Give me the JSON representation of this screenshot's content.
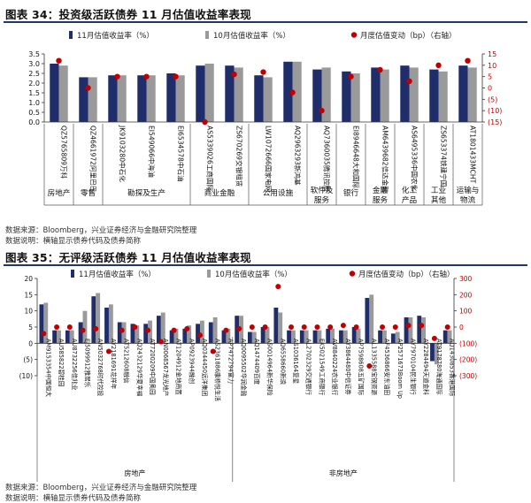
{
  "figures": [
    {
      "title": "图表 34：投资级活跃债券 11 月估值收益率表现",
      "source": "数据来源：Bloomberg，兴业证券经济与金融研究院整理",
      "note": "数据说明：横轴显示债券代码及债券简称",
      "legend": [
        {
          "label": "11月估值收益率（%）",
          "kind": "bar",
          "color": "#1f2d6b"
        },
        {
          "label": "10月估值收益率（%）",
          "kind": "bar",
          "color": "#9a9a9a"
        },
        {
          "label": "月度估值变动（bp）（右轴）",
          "kind": "dot",
          "color": "#c00000"
        }
      ]
    },
    {
      "title": "图表 35：无评级活跃债券 11 月估值收益率表现",
      "source": "数据来源：Bloomberg，兴业证券经济与金融研究院整理",
      "note": "数据说明：横轴显示债券代码及债券简称",
      "legend": [
        {
          "label": "11月估值收益率（%）",
          "kind": "bar",
          "color": "#1f2d6b"
        },
        {
          "label": "10月估值收益率（%）",
          "kind": "bar",
          "color": "#9a9a9a"
        },
        {
          "label": "月度估值变动（bp）（右轴）",
          "kind": "dot",
          "color": "#c00000"
        }
      ]
    }
  ],
  "chart_data": [
    {
      "type": "bar",
      "categories": [
        "QZ5765809万科",
        "QZ4661972阿里巴巴",
        "JK9103280中石化",
        "EI549066中海油",
        "EI6534578中石油",
        "AS5339026工商国际",
        "ZS670269交银租赁",
        "LW1072666国家电网",
        "AQ2963293新鸿基",
        "AQ7360035腾讯控股",
        "EI8946648大和国际",
        "AM6439682信达金融",
        "AS6495336中国农化",
        "ZS653374铁建宁国",
        "AT1801433MCHT"
      ],
      "series": [
        {
          "name": "11月估值收益率（%）",
          "axis": "left",
          "values": [
            3.0,
            2.3,
            2.4,
            2.4,
            2.5,
            2.9,
            2.9,
            2.4,
            3.1,
            2.7,
            2.6,
            2.8,
            2.9,
            2.7,
            2.9
          ]
        },
        {
          "name": "10月估值收益率（%）",
          "axis": "left",
          "values": [
            2.9,
            2.3,
            2.4,
            2.4,
            2.4,
            3.0,
            2.8,
            2.3,
            3.1,
            2.8,
            2.5,
            2.7,
            2.8,
            2.6,
            2.8
          ]
        },
        {
          "name": "月度估值变动（bp）（右轴）",
          "axis": "right",
          "type": "scatter",
          "values": [
            12,
            0,
            5,
            5,
            5,
            -15,
            6,
            7,
            -2,
            -10,
            5,
            8,
            3,
            10,
            12
          ]
        }
      ],
      "groups": [
        {
          "label": "房地产",
          "start": 0,
          "end": 0
        },
        {
          "label": "零售",
          "start": 1,
          "end": 1
        },
        {
          "label": "勘探及生产",
          "start": 2,
          "end": 4
        },
        {
          "label": "商业金融",
          "start": 5,
          "end": 6
        },
        {
          "label": "公用设施",
          "start": 7,
          "end": 8
        },
        {
          "label": "软件及服务",
          "start": 9,
          "end": 9
        },
        {
          "label": "银行",
          "start": 10,
          "end": 10
        },
        {
          "label": "金融服务",
          "start": 11,
          "end": 11
        },
        {
          "label": "化工产品",
          "start": 12,
          "end": 12
        },
        {
          "label": "工业其他",
          "start": 13,
          "end": 13
        },
        {
          "label": "运输与物流",
          "start": 14,
          "end": 14
        }
      ],
      "ylim_left": [
        0,
        3.5
      ],
      "yticks_left": [
        0.0,
        0.5,
        1.0,
        1.5,
        2.0,
        2.5,
        3.0,
        3.5
      ],
      "ytick_labels_left": [
        "0.0",
        "0.5",
        "1.0",
        "1.5",
        "2.0",
        "2.5",
        "3.0",
        "3.5"
      ],
      "ylim_right": [
        -15,
        15
      ],
      "yticks_right": [
        -15,
        -10,
        -5,
        0,
        5,
        10,
        15
      ],
      "ytick_labels_right": [
        "(15)",
        "(10)",
        "(5)",
        "0",
        "5",
        "10",
        "15"
      ],
      "grid": false,
      "legend_position": "top"
    },
    {
      "type": "bar",
      "categories": [
        "AM9153354中国恒大",
        "AU585822碧桂园",
        "AU8732256佳兆业",
        "EJ5099912雅居乐",
        "AN5032768时代控股",
        "AY2181691花样年",
        "AT5212608融信",
        "AQ2432129华夏幸福",
        "AT7200209中国奥园",
        "AN0068567龙光地产",
        "AT1204912金地商置",
        "AP0923944融创",
        "AQ0344450远洋集团",
        "AS2361886康桥悦生活",
        "AP7472794富力",
        "AQ0095502华润金融",
        "AQ1474409百度",
        "AS0014964新华保险",
        "AQ6558660新浪",
        "AS1036164复星",
        "AL2702329交通银行",
        "EK5021549工商银行",
        "AV8840224农业银行",
        "AY3864480中信证券",
        "AP7598608五矿国际",
        "AL1335588宝钢资源",
        "AF4536866安东油田",
        "AP2571673Boom Up",
        "AY7970104民生银行",
        "AY2284494天道金科",
        "AT9178780海通国际",
        "AQ1430853香港国际"
      ],
      "series": [
        {
          "name": "11月估值收益率（%）",
          "axis": "left",
          "values": [
            12.0,
            4.0,
            4.0,
            6.5,
            14.5,
            11.0,
            6.5,
            6.0,
            6.0,
            8.5,
            4.0,
            4.5,
            6.0,
            6.5,
            4.0,
            8.5,
            3.5,
            5.0,
            11.0,
            4.0,
            4.0,
            4.0,
            4.5,
            4.0,
            5.0,
            14.0,
            4.0,
            3.0,
            8.0,
            8.5,
            -5.5,
            4.0
          ]
        },
        {
          "name": "10月估值收益率（%）",
          "axis": "left",
          "values": [
            12.5,
            4.0,
            4.0,
            10.0,
            15.5,
            12.0,
            6.5,
            5.5,
            7.0,
            9.5,
            4.5,
            5.5,
            7.0,
            8.0,
            4.5,
            8.5,
            3.5,
            5.0,
            9.5,
            4.0,
            4.0,
            4.0,
            4.5,
            4.0,
            4.5,
            15.0,
            4.0,
            3.5,
            8.0,
            8.0,
            -6.5,
            4.0
          ]
        },
        {
          "name": "月度估值变动（bp）（右轴）",
          "axis": "right",
          "type": "scatter",
          "values": [
            -40,
            0,
            0,
            -20,
            -10,
            -150,
            -20,
            0,
            -20,
            -90,
            -20,
            -10,
            -50,
            -150,
            -20,
            -10,
            0,
            0,
            250,
            0,
            0,
            0,
            0,
            10,
            0,
            -240,
            0,
            0,
            10,
            10,
            -70,
            0
          ]
        }
      ],
      "groups": [
        {
          "label": "房地产",
          "start": 0,
          "end": 14
        },
        {
          "label": "非房地产",
          "start": 15,
          "end": 31
        }
      ],
      "ylim_left": [
        -10,
        20
      ],
      "yticks_left": [
        -10,
        -5,
        0,
        5,
        10,
        15,
        20
      ],
      "ytick_labels_left": [
        "(10)",
        "(5)",
        "0",
        "5",
        "10",
        "15",
        "20"
      ],
      "ylim_right": [
        -300,
        300
      ],
      "yticks_right": [
        -300,
        -200,
        -100,
        0,
        100,
        200,
        300
      ],
      "ytick_labels_right": [
        "(300)",
        "(200)",
        "(100)",
        "0",
        "100",
        "200",
        "300"
      ],
      "grid": false,
      "legend_position": "top"
    }
  ]
}
